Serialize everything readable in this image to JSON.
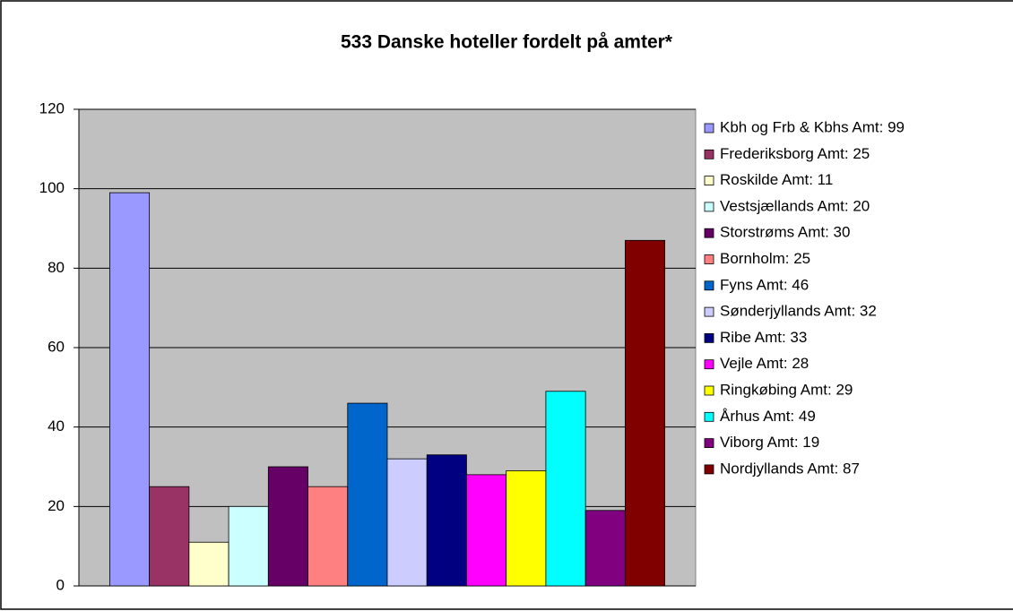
{
  "chart_data": {
    "type": "bar",
    "title": "533 Danske hoteller fordelt på amter*",
    "ylim": [
      0,
      120
    ],
    "yticks": [
      0,
      20,
      40,
      60,
      80,
      100,
      120
    ],
    "grid": true,
    "series": [
      {
        "name": "Kbh og Frb & Kbhs Amt: 99",
        "color": "#9999ff",
        "values": [
          99
        ]
      },
      {
        "name": "Frederiksborg Amt: 25",
        "color": "#993366",
        "values": [
          25
        ]
      },
      {
        "name": "Roskilde Amt: 11",
        "color": "#ffffcc",
        "values": [
          11
        ]
      },
      {
        "name": "Vestsjællands Amt: 20",
        "color": "#ccffff",
        "values": [
          20
        ]
      },
      {
        "name": "Storstrøms Amt: 30",
        "color": "#660066",
        "values": [
          30
        ]
      },
      {
        "name": "Bornholm: 25",
        "color": "#ff8080",
        "values": [
          25
        ]
      },
      {
        "name": "Fyns Amt: 46",
        "color": "#0066cc",
        "values": [
          46
        ]
      },
      {
        "name": "Sønderjyllands Amt: 32",
        "color": "#ccccff",
        "values": [
          32
        ]
      },
      {
        "name": "Ribe Amt: 33",
        "color": "#000080",
        "values": [
          33
        ]
      },
      {
        "name": "Vejle Amt: 28",
        "color": "#ff00ff",
        "values": [
          28
        ]
      },
      {
        "name": "Ringkøbing Amt: 29",
        "color": "#ffff00",
        "values": [
          29
        ]
      },
      {
        "name": "Århus Amt: 49",
        "color": "#00ffff",
        "values": [
          49
        ]
      },
      {
        "name": "Viborg Amt: 19",
        "color": "#800080",
        "values": [
          19
        ]
      },
      {
        "name": "Nordjyllands Amt: 87",
        "color": "#800000",
        "values": [
          87
        ]
      }
    ]
  }
}
